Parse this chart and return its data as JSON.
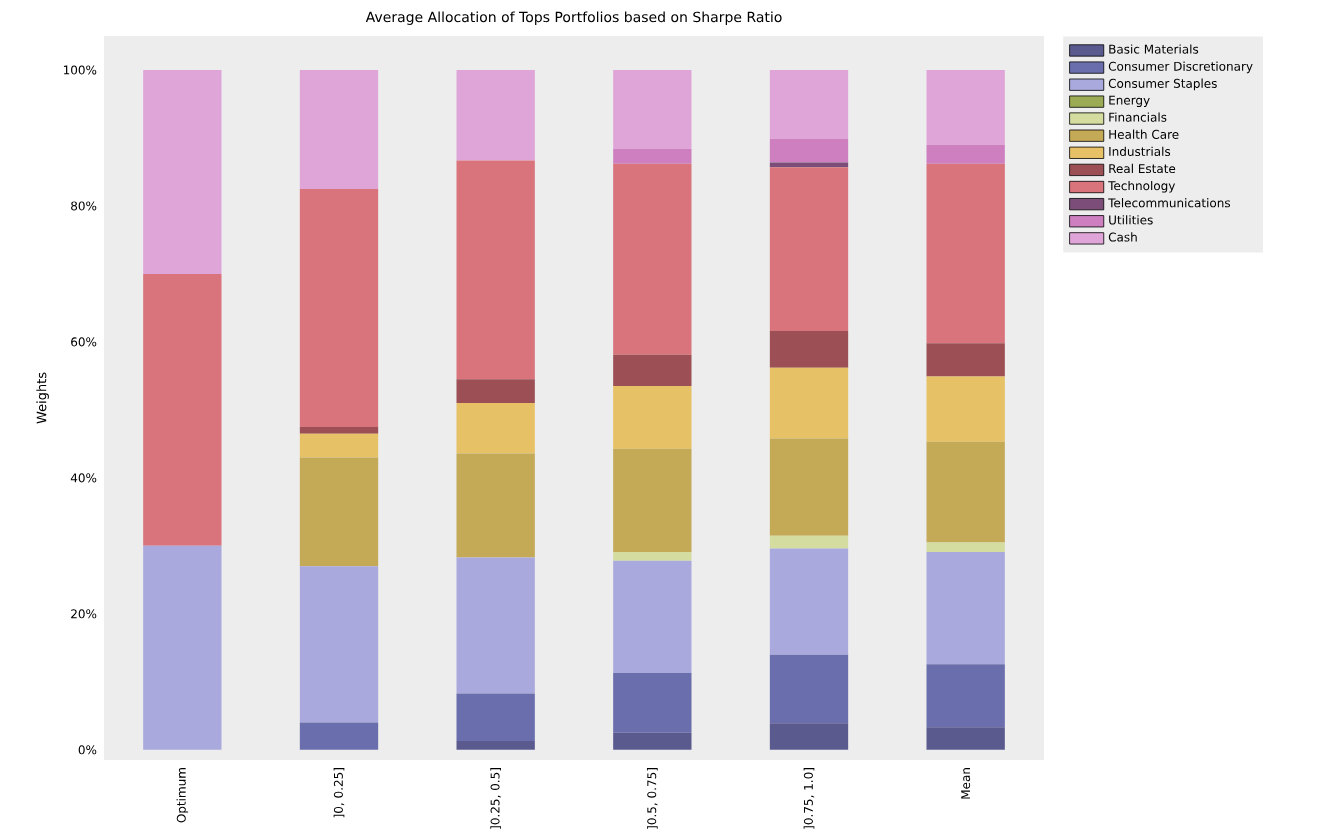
{
  "chart_data": {
    "type": "bar",
    "stacked": true,
    "title": "Average Allocation of Tops Portfolios based on Sharpe Ratio",
    "ylabel": "Weights",
    "categories": [
      "Optimum",
      "]0, 0.25]",
      "]0.25, 0.5]",
      "]0.5, 0.75]",
      "]0.75, 1.0]",
      "Mean"
    ],
    "ylim": [
      -1.5,
      105
    ],
    "yticks": [
      {
        "value": 0,
        "label": "0%"
      },
      {
        "value": 20,
        "label": "20%"
      },
      {
        "value": 40,
        "label": "40%"
      },
      {
        "value": 60,
        "label": "60%"
      },
      {
        "value": 80,
        "label": "80%"
      },
      {
        "value": 100,
        "label": "100%"
      }
    ],
    "grid": false,
    "legend": "right",
    "series": [
      {
        "name": "Basic Materials",
        "color": "#5b5a8f",
        "values": [
          0,
          0,
          1.3,
          2.5,
          3.9,
          3.3
        ]
      },
      {
        "name": "Consumer Discretionary",
        "color": "#6b6ead",
        "values": [
          0,
          4,
          7,
          8.8,
          10.1,
          9.3
        ]
      },
      {
        "name": "Consumer Staples",
        "color": "#a9a9dd",
        "values": [
          30,
          23,
          20,
          16.5,
          15.6,
          16.5
        ]
      },
      {
        "name": "Energy",
        "color": "#9aaa55",
        "values": [
          0,
          0,
          0,
          0,
          0,
          0
        ]
      },
      {
        "name": "Financials",
        "color": "#d4dca0",
        "values": [
          0,
          0,
          0,
          1.3,
          1.9,
          1.4
        ]
      },
      {
        "name": "Health Care",
        "color": "#c4a957",
        "values": [
          0,
          16,
          15.3,
          15.2,
          14.3,
          14.8
        ]
      },
      {
        "name": "Industrials",
        "color": "#e6c165",
        "values": [
          0,
          3.5,
          7.4,
          9.2,
          10.4,
          9.6
        ]
      },
      {
        "name": "Real Estate",
        "color": "#9c4f55",
        "values": [
          0,
          1,
          3.5,
          4.6,
          5.4,
          4.9
        ]
      },
      {
        "name": "Technology",
        "color": "#d9747c",
        "values": [
          40,
          35,
          32.2,
          28.1,
          24.1,
          26.4
        ]
      },
      {
        "name": "Telecommunications",
        "color": "#7b4d78",
        "values": [
          0,
          0,
          0,
          0,
          0.7,
          0
        ]
      },
      {
        "name": "Utilities",
        "color": "#cd7fc0",
        "values": [
          0,
          0,
          0,
          2.2,
          3.5,
          2.8
        ]
      },
      {
        "name": "Cash",
        "color": "#dfa5d8",
        "values": [
          30,
          17.5,
          13.3,
          11.6,
          10.1,
          11
        ]
      }
    ]
  }
}
